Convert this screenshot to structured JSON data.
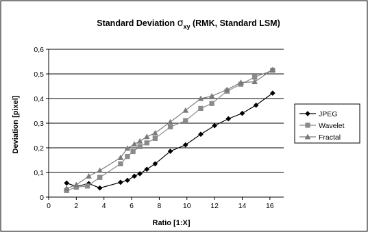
{
  "chart_data": {
    "type": "line",
    "title": {
      "prefix": "Standard Deviation ",
      "symbol": "σ",
      "subscript": "xy",
      "suffix": " (RMK, Standard LSM)"
    },
    "xlabel": "Ratio [1:X]",
    "ylabel": "Deviation [pixel]",
    "xlim": [
      0,
      17
    ],
    "ylim": [
      0,
      0.6
    ],
    "x_ticks": [
      0,
      2,
      4,
      6,
      8,
      10,
      12,
      14,
      16
    ],
    "y_ticks": [
      0,
      0.1,
      0.2,
      0.3,
      0.4,
      0.5,
      0.6
    ],
    "y_tick_labels": [
      "0",
      "0,1",
      "0,2",
      "0,3",
      "0,4",
      "0,5",
      "0,6"
    ],
    "grid": "horizontal",
    "legend_position": "right",
    "series": [
      {
        "name": "JPEG",
        "marker": "diamond",
        "color": "#000000",
        "x": [
          1.3,
          2.0,
          2.9,
          3.7,
          5.2,
          5.7,
          6.2,
          6.6,
          7.1,
          7.7,
          8.8,
          9.9,
          11.0,
          12.0,
          13.0,
          14.0,
          15.0,
          16.2
        ],
        "y": [
          0.057,
          0.043,
          0.055,
          0.037,
          0.06,
          0.068,
          0.085,
          0.095,
          0.113,
          0.135,
          0.186,
          0.212,
          0.255,
          0.29,
          0.318,
          0.34,
          0.373,
          0.422
        ]
      },
      {
        "name": "Wavelet",
        "marker": "square",
        "color": "#8a8a8a",
        "x": [
          1.3,
          2.0,
          2.8,
          3.7,
          5.2,
          5.7,
          6.1,
          6.6,
          7.1,
          7.7,
          8.8,
          9.9,
          11.0,
          11.8,
          12.9,
          13.9,
          14.9,
          16.2
        ],
        "y": [
          0.027,
          0.04,
          0.045,
          0.08,
          0.135,
          0.165,
          0.185,
          0.205,
          0.22,
          0.238,
          0.285,
          0.31,
          0.36,
          0.38,
          0.43,
          0.458,
          0.487,
          0.515
        ]
      },
      {
        "name": "Fractal",
        "marker": "triangle",
        "color": "#7a7a7a",
        "x": [
          1.3,
          2.0,
          2.9,
          3.7,
          5.2,
          5.7,
          6.2,
          6.6,
          7.1,
          7.7,
          8.8,
          9.9,
          11.0,
          11.8,
          12.9,
          13.9,
          14.9,
          16.2
        ],
        "y": [
          0.035,
          0.05,
          0.085,
          0.108,
          0.16,
          0.198,
          0.215,
          0.227,
          0.245,
          0.26,
          0.305,
          0.352,
          0.4,
          0.41,
          0.436,
          0.465,
          0.468,
          0.517
        ]
      }
    ]
  }
}
